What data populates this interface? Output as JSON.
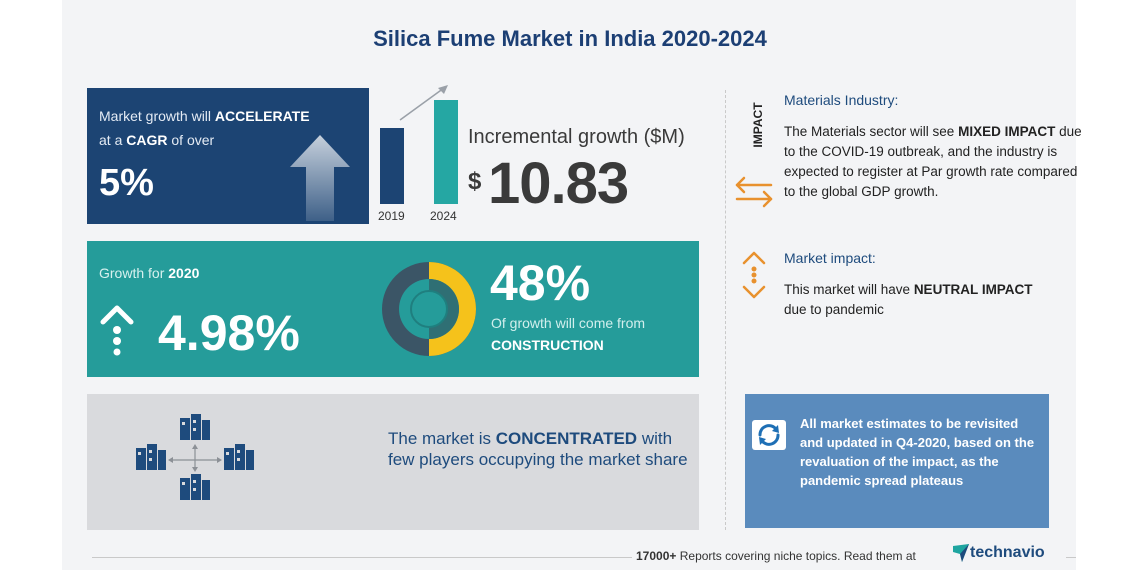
{
  "title": "Silica Fume Market in India 2020-2024",
  "cagr_box": {
    "line1_prefix": "Market growth will",
    "line1_bold": "ACCELERATE",
    "line2_prefix": "at a",
    "line2_bold": "CAGR",
    "line2_suffix": "of over",
    "value": "5%"
  },
  "mini_chart": {
    "year_start": "2019",
    "year_end": "2024"
  },
  "incremental": {
    "label": "Incremental growth ($M)",
    "currency": "$",
    "value": "10.83"
  },
  "growth_box": {
    "label_prefix": "Growth for",
    "label_year": "2020",
    "value": "4.98%",
    "share_value": "48%",
    "share_text": "Of growth will come from",
    "share_segment": "CONSTRUCTION"
  },
  "concentration": {
    "prefix": "The market is",
    "bold": "CONCENTRATED",
    "rest": "with few players occupying the market share"
  },
  "impact": {
    "vertical_label": "IMPACT",
    "materials_title": "Materials Industry:",
    "materials_body_prefix": "The Materials sector will see",
    "materials_body_bold": "MIXED IMPACT",
    "materials_body_suffix": "due to the COVID-19 outbreak, and the industry is expected to register at Par growth rate compared to the global GDP growth.",
    "market_title": "Market impact:",
    "market_body_prefix": "This market will have",
    "market_body_bold": "NEUTRAL IMPACT",
    "market_body_suffix": "due to pandemic"
  },
  "note": {
    "text": "All market estimates to be revisited and updated in Q4-2020, based on the revaluation of the impact, as the pandemic spread plateaus"
  },
  "footer": {
    "count": "17000+",
    "text": "Reports covering niche topics. Read them at",
    "brand": "technavio"
  },
  "colors": {
    "navy": "#1c4473",
    "teal": "#259c9a",
    "orange": "#e8912e",
    "gold": "#f5c21b",
    "note_blue": "#5a8bbd"
  },
  "icons": [
    "up-arrow-icon",
    "trend-arrow-icon",
    "growth-up-icon",
    "donut-icon",
    "network-icon",
    "swap-arrows-icon",
    "up-down-arrows-icon",
    "refresh-icon",
    "technavio-logo-icon"
  ]
}
